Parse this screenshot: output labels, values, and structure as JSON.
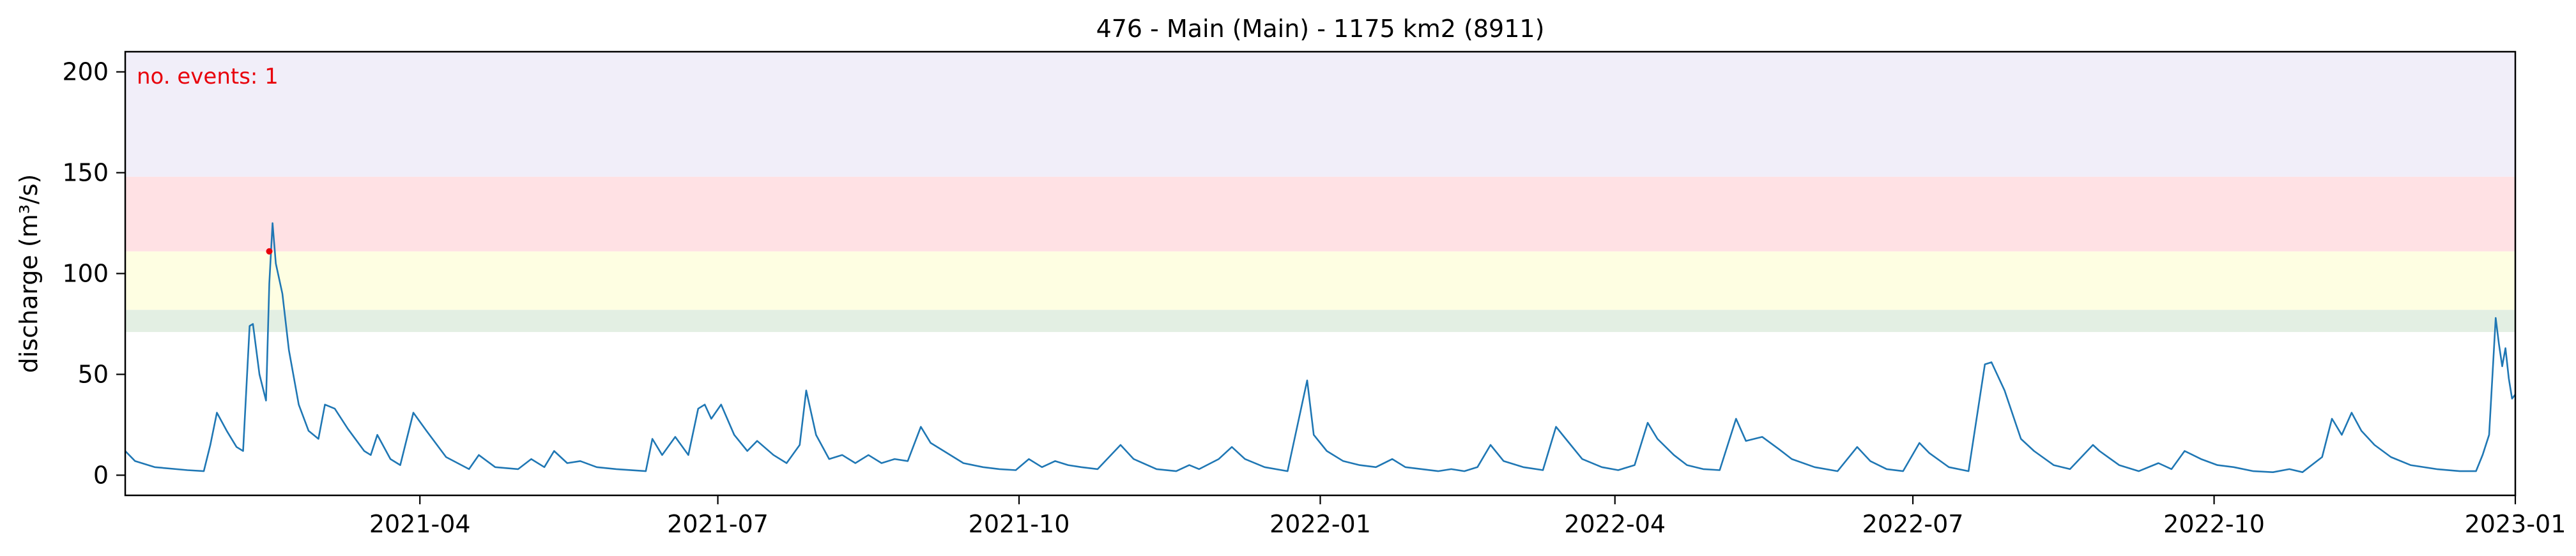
{
  "chart_data": {
    "type": "line",
    "title": "476 - Main (Main) - 1175 km2 (8911)",
    "xlabel": "",
    "ylabel": "discharge (m³/s)",
    "xlim": [
      "2021-01-01",
      "2023-01-01"
    ],
    "ylim": [
      -10,
      210
    ],
    "x_ticks": [
      "2021-04",
      "2021-07",
      "2021-10",
      "2022-01",
      "2022-04",
      "2022-07",
      "2022-10",
      "2023-01"
    ],
    "y_ticks": [
      0,
      50,
      100,
      150,
      200
    ],
    "grid": false,
    "annotation": "no. events: 1",
    "threshold_bands": [
      {
        "from": 71,
        "to": 82,
        "color": "#e3efe3"
      },
      {
        "from": 82,
        "to": 111,
        "color": "#fefee2"
      },
      {
        "from": 111,
        "to": 148,
        "color": "#ffe1e4"
      },
      {
        "from": 148,
        "to": 210,
        "color": "#f1eef9"
      }
    ],
    "events": [
      {
        "x": "2021-02-14",
        "y": 111
      }
    ],
    "series": [
      {
        "color": "#1f77b4",
        "points": [
          [
            "2021-01-01",
            12
          ],
          [
            "2021-01-04",
            7
          ],
          [
            "2021-01-10",
            4
          ],
          [
            "2021-01-20",
            2.5
          ],
          [
            "2021-01-25",
            2
          ],
          [
            "2021-01-27",
            15
          ],
          [
            "2021-01-29",
            31
          ],
          [
            "2021-02-01",
            22
          ],
          [
            "2021-02-04",
            14
          ],
          [
            "2021-02-06",
            12
          ],
          [
            "2021-02-08",
            74
          ],
          [
            "2021-02-09",
            75
          ],
          [
            "2021-02-11",
            50
          ],
          [
            "2021-02-13",
            37
          ],
          [
            "2021-02-14",
            95
          ],
          [
            "2021-02-15",
            125
          ],
          [
            "2021-02-16",
            105
          ],
          [
            "2021-02-18",
            90
          ],
          [
            "2021-02-20",
            62
          ],
          [
            "2021-02-23",
            35
          ],
          [
            "2021-02-26",
            22
          ],
          [
            "2021-03-01",
            18
          ],
          [
            "2021-03-03",
            35
          ],
          [
            "2021-03-06",
            33
          ],
          [
            "2021-03-10",
            23
          ],
          [
            "2021-03-15",
            12
          ],
          [
            "2021-03-17",
            10
          ],
          [
            "2021-03-19",
            20
          ],
          [
            "2021-03-23",
            8
          ],
          [
            "2021-03-26",
            5
          ],
          [
            "2021-03-28",
            18
          ],
          [
            "2021-03-30",
            31
          ],
          [
            "2021-04-03",
            22
          ],
          [
            "2021-04-09",
            9
          ],
          [
            "2021-04-16",
            3
          ],
          [
            "2021-04-19",
            10
          ],
          [
            "2021-04-24",
            4
          ],
          [
            "2021-05-01",
            3
          ],
          [
            "2021-05-05",
            8
          ],
          [
            "2021-05-09",
            4
          ],
          [
            "2021-05-12",
            12
          ],
          [
            "2021-05-16",
            6
          ],
          [
            "2021-05-20",
            7
          ],
          [
            "2021-05-25",
            4
          ],
          [
            "2021-05-31",
            3
          ],
          [
            "2021-06-09",
            2
          ],
          [
            "2021-06-11",
            18
          ],
          [
            "2021-06-14",
            10
          ],
          [
            "2021-06-18",
            19
          ],
          [
            "2021-06-22",
            10
          ],
          [
            "2021-06-25",
            33
          ],
          [
            "2021-06-27",
            35
          ],
          [
            "2021-06-29",
            28
          ],
          [
            "2021-07-02",
            35
          ],
          [
            "2021-07-06",
            20
          ],
          [
            "2021-07-10",
            12
          ],
          [
            "2021-07-13",
            17
          ],
          [
            "2021-07-18",
            10
          ],
          [
            "2021-07-22",
            6
          ],
          [
            "2021-07-26",
            15
          ],
          [
            "2021-07-28",
            42
          ],
          [
            "2021-07-31",
            20
          ],
          [
            "2021-08-04",
            8
          ],
          [
            "2021-08-08",
            10
          ],
          [
            "2021-08-12",
            6
          ],
          [
            "2021-08-16",
            10
          ],
          [
            "2021-08-20",
            6
          ],
          [
            "2021-08-24",
            8
          ],
          [
            "2021-08-28",
            7
          ],
          [
            "2021-09-01",
            24
          ],
          [
            "2021-09-04",
            16
          ],
          [
            "2021-09-08",
            12
          ],
          [
            "2021-09-14",
            6
          ],
          [
            "2021-09-20",
            4
          ],
          [
            "2021-09-25",
            3
          ],
          [
            "2021-09-30",
            2.5
          ],
          [
            "2021-10-04",
            8
          ],
          [
            "2021-10-08",
            4
          ],
          [
            "2021-10-12",
            7
          ],
          [
            "2021-10-16",
            5
          ],
          [
            "2021-10-20",
            4
          ],
          [
            "2021-10-25",
            3
          ],
          [
            "2021-11-01",
            15
          ],
          [
            "2021-11-05",
            8
          ],
          [
            "2021-11-12",
            3
          ],
          [
            "2021-11-18",
            2
          ],
          [
            "2021-11-22",
            5
          ],
          [
            "2021-11-25",
            3
          ],
          [
            "2021-12-01",
            8
          ],
          [
            "2021-12-05",
            14
          ],
          [
            "2021-12-09",
            8
          ],
          [
            "2021-12-15",
            4
          ],
          [
            "2021-12-22",
            2
          ],
          [
            "2021-12-28",
            47
          ],
          [
            "2021-12-30",
            20
          ],
          [
            "2022-01-03",
            12
          ],
          [
            "2022-01-08",
            7
          ],
          [
            "2022-01-13",
            5
          ],
          [
            "2022-01-18",
            4
          ],
          [
            "2022-01-23",
            8
          ],
          [
            "2022-01-27",
            4
          ],
          [
            "2022-02-01",
            3
          ],
          [
            "2022-02-06",
            2
          ],
          [
            "2022-02-10",
            3
          ],
          [
            "2022-02-14",
            2
          ],
          [
            "2022-02-18",
            4
          ],
          [
            "2022-02-22",
            15
          ],
          [
            "2022-02-26",
            7
          ],
          [
            "2022-03-04",
            4
          ],
          [
            "2022-03-10",
            2.5
          ],
          [
            "2022-03-14",
            24
          ],
          [
            "2022-03-17",
            18
          ],
          [
            "2022-03-22",
            8
          ],
          [
            "2022-03-28",
            4
          ],
          [
            "2022-04-02",
            2.5
          ],
          [
            "2022-04-07",
            5
          ],
          [
            "2022-04-11",
            26
          ],
          [
            "2022-04-14",
            18
          ],
          [
            "2022-04-19",
            10
          ],
          [
            "2022-04-23",
            5
          ],
          [
            "2022-04-28",
            3
          ],
          [
            "2022-05-03",
            2.5
          ],
          [
            "2022-05-08",
            28
          ],
          [
            "2022-05-11",
            17
          ],
          [
            "2022-05-16",
            19
          ],
          [
            "2022-05-21",
            13
          ],
          [
            "2022-05-25",
            8
          ],
          [
            "2022-06-01",
            4
          ],
          [
            "2022-06-08",
            2
          ],
          [
            "2022-06-14",
            14
          ],
          [
            "2022-06-18",
            7
          ],
          [
            "2022-06-23",
            3
          ],
          [
            "2022-06-28",
            2
          ],
          [
            "2022-07-03",
            16
          ],
          [
            "2022-07-06",
            11
          ],
          [
            "2022-07-12",
            4
          ],
          [
            "2022-07-18",
            2
          ],
          [
            "2022-07-23",
            55
          ],
          [
            "2022-07-25",
            56
          ],
          [
            "2022-07-29",
            42
          ],
          [
            "2022-08-03",
            18
          ],
          [
            "2022-08-07",
            12
          ],
          [
            "2022-08-13",
            5
          ],
          [
            "2022-08-18",
            3
          ],
          [
            "2022-08-25",
            15
          ],
          [
            "2022-08-27",
            12
          ],
          [
            "2022-09-02",
            5
          ],
          [
            "2022-09-08",
            2
          ],
          [
            "2022-09-14",
            6
          ],
          [
            "2022-09-18",
            3
          ],
          [
            "2022-09-22",
            12
          ],
          [
            "2022-09-27",
            8
          ],
          [
            "2022-10-02",
            5
          ],
          [
            "2022-10-07",
            4
          ],
          [
            "2022-10-13",
            2
          ],
          [
            "2022-10-19",
            1.5
          ],
          [
            "2022-10-24",
            3
          ],
          [
            "2022-10-28",
            1.5
          ],
          [
            "2022-11-03",
            9
          ],
          [
            "2022-11-06",
            28
          ],
          [
            "2022-11-09",
            20
          ],
          [
            "2022-11-12",
            31
          ],
          [
            "2022-11-15",
            22
          ],
          [
            "2022-11-19",
            15
          ],
          [
            "2022-11-24",
            9
          ],
          [
            "2022-11-30",
            5
          ],
          [
            "2022-12-08",
            3
          ],
          [
            "2022-12-15",
            2
          ],
          [
            "2022-12-20",
            2
          ],
          [
            "2022-12-22",
            10
          ],
          [
            "2022-12-24",
            20
          ],
          [
            "2022-12-26",
            78
          ],
          [
            "2022-12-27",
            65
          ],
          [
            "2022-12-28",
            54
          ],
          [
            "2022-12-29",
            63
          ],
          [
            "2022-12-30",
            48
          ],
          [
            "2022-12-31",
            38
          ],
          [
            "2023-01-01",
            40
          ]
        ]
      }
    ]
  }
}
